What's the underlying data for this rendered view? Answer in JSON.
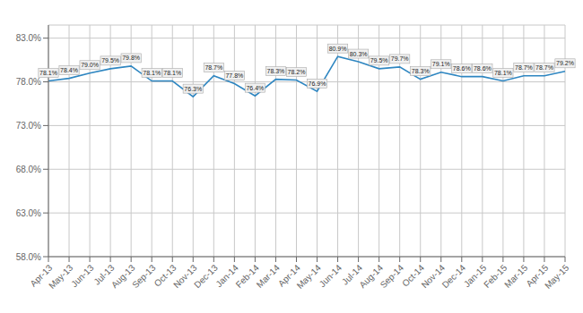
{
  "chart_data": {
    "type": "line",
    "categories": [
      "Apr-13",
      "May-13",
      "Jun-13",
      "Jul-13",
      "Aug-13",
      "Sep-13",
      "Oct-13",
      "Nov-13",
      "Dec-13",
      "Jan-14",
      "Feb-14",
      "Mar-14",
      "Apr-14",
      "May-14",
      "Jun-14",
      "Jul-14",
      "Aug-14",
      "Sep-14",
      "Oct-14",
      "Nov-14",
      "Dec-14",
      "Jan-15",
      "Feb-15",
      "Mar-15",
      "Apr-15",
      "May-15"
    ],
    "values": [
      78.1,
      78.4,
      79.0,
      79.5,
      79.8,
      78.1,
      78.1,
      76.3,
      78.7,
      77.8,
      76.4,
      78.3,
      78.2,
      76.9,
      80.9,
      80.3,
      79.5,
      79.7,
      78.3,
      79.1,
      78.6,
      78.6,
      78.1,
      78.7,
      78.7,
      79.2
    ],
    "value_labels": [
      "78.1%",
      "78.4%",
      "79.0%",
      "79.5%",
      "79.8%",
      "78.1%",
      "78.1%",
      "76.3%",
      "78.7%",
      "77.8%",
      "76.4%",
      "78.3%",
      "78.2%",
      "76.9%",
      "80.9%",
      "80.3%",
      "79.5%",
      "79.7%",
      "78.3%",
      "79.1%",
      "78.6%",
      "78.6%",
      "78.1%",
      "78.7%",
      "78.7%",
      "79.2%"
    ],
    "color": "#2E86C1",
    "ylim": [
      58.0,
      84.5
    ],
    "yticks": [
      {
        "value": 58.0,
        "label": "58.0%"
      },
      {
        "value": 63.0,
        "label": "63.0%"
      },
      {
        "value": 68.0,
        "label": "68.0%"
      },
      {
        "value": 73.0,
        "label": "73.0%"
      },
      {
        "value": 78.0,
        "label": "78.0%"
      },
      {
        "value": 83.0,
        "label": "83.0%"
      }
    ],
    "grid": true,
    "data_labels": true
  }
}
